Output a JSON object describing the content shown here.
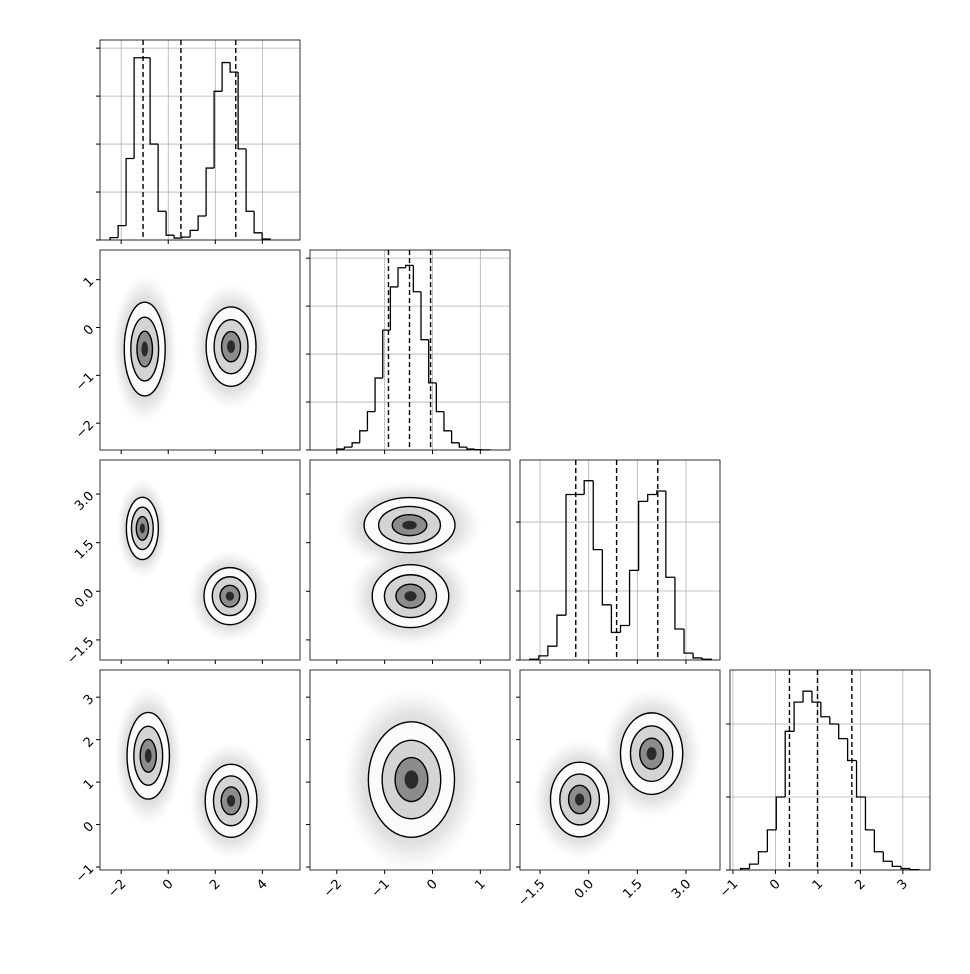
{
  "chart_data": {
    "type": "corner",
    "grid": true,
    "color": "#000000",
    "params": [
      {
        "lim": [
          -2.9,
          5.6
        ],
        "ticks": [
          {
            "value": -2,
            "label": "−2"
          },
          0,
          2,
          4
        ],
        "quantiles": [
          -1.07,
          0.54,
          2.87
        ],
        "hist": {
          "bins": [
            -2.47,
            -2.13,
            -1.79,
            -1.45,
            -1.11,
            -0.77,
            -0.43,
            -0.09,
            0.25,
            0.59,
            0.93,
            1.27,
            1.61,
            1.95,
            2.29,
            2.63,
            2.97,
            3.31,
            3.65,
            3.99,
            4.33
          ],
          "counts": [
            50,
            300,
            1700,
            3800,
            3800,
            2000,
            600,
            100,
            40,
            60,
            200,
            500,
            1500,
            3100,
            3700,
            3500,
            1900,
            600,
            150,
            20
          ],
          "ylim": [
            0,
            4170
          ],
          "yticks": [
            0,
            1000,
            2000,
            3000,
            4000
          ]
        }
      },
      {
        "lim": [
          -2.56,
          1.62
        ],
        "ticks": [
          {
            "value": -2,
            "label": "−2"
          },
          {
            "value": -1,
            "label": "−1"
          },
          0,
          1
        ],
        "quantiles": [
          -0.92,
          -0.48,
          -0.04
        ],
        "hist": {
          "bins": [
            -2.0,
            -1.84,
            -1.68,
            -1.52,
            -1.36,
            -1.2,
            -1.04,
            -0.88,
            -0.72,
            -0.56,
            -0.4,
            -0.24,
            -0.08,
            0.08,
            0.24,
            0.4,
            0.56,
            0.72,
            0.88,
            1.04,
            1.2
          ],
          "counts": [
            20,
            60,
            150,
            400,
            800,
            1500,
            2500,
            3400,
            3800,
            3850,
            3300,
            2300,
            1400,
            800,
            400,
            150,
            60,
            20,
            8,
            2
          ],
          "ylim": [
            0,
            4170
          ],
          "yticks": [
            0,
            1000,
            2000,
            3000,
            4000
          ]
        }
      },
      {
        "lim": [
          -2.12,
          4.05
        ],
        "ticks": [
          {
            "value": -1.5,
            "label": "−1.5"
          },
          {
            "value": 0,
            "label": "0.0"
          },
          1.5,
          {
            "value": 3,
            "label": "3.0"
          }
        ],
        "quantiles": [
          -0.4,
          0.86,
          2.13
        ],
        "hist": {
          "bins": [
            -1.82,
            -1.54,
            -1.26,
            -0.98,
            -0.7,
            -0.42,
            -0.14,
            0.14,
            0.42,
            0.7,
            0.98,
            1.26,
            1.54,
            1.82,
            2.1,
            2.38,
            2.66,
            2.94,
            3.22,
            3.5,
            3.78
          ],
          "counts": [
            10,
            60,
            200,
            650,
            2400,
            2400,
            2600,
            1600,
            800,
            400,
            500,
            1300,
            2300,
            2400,
            2450,
            1200,
            450,
            100,
            30,
            10
          ],
          "ylim": [
            0,
            2900
          ],
          "yticks": [
            0,
            1000,
            2000
          ]
        }
      },
      {
        "lim": [
          -1.07,
          3.64
        ],
        "ticks": [
          {
            "value": -1,
            "label": "−1"
          },
          0,
          1,
          2,
          3
        ],
        "quantiles": [
          0.33,
          0.99,
          1.8
        ],
        "hist": {
          "bins": [
            -0.82,
            -0.61,
            -0.4,
            -0.19,
            0.02,
            0.23,
            0.44,
            0.65,
            0.86,
            1.07,
            1.28,
            1.49,
            1.7,
            1.91,
            2.12,
            2.33,
            2.54,
            2.75,
            2.96,
            3.17,
            3.38
          ],
          "counts": [
            20,
            80,
            250,
            550,
            1000,
            1900,
            2300,
            2450,
            2300,
            2100,
            2000,
            1800,
            1500,
            1000,
            550,
            250,
            120,
            50,
            20,
            5
          ],
          "ylim": [
            0,
            2740
          ],
          "yticks": [
            0,
            1000,
            2000
          ]
        }
      }
    ],
    "panels": [
      {
        "x": 0,
        "y": 1,
        "blobs": [
          {
            "x": -1.0,
            "y": -0.45,
            "rx": 0.87,
            "ry": 0.98
          },
          {
            "x": 2.67,
            "y": -0.4,
            "rx": 1.06,
            "ry": 0.83
          }
        ]
      },
      {
        "x": 0,
        "y": 2,
        "blobs": [
          {
            "x": -1.1,
            "y": 1.94,
            "rx": 0.68,
            "ry": 0.96
          },
          {
            "x": 2.62,
            "y": -0.15,
            "rx": 1.1,
            "ry": 0.88
          }
        ]
      },
      {
        "x": 1,
        "y": 2,
        "blobs": [
          {
            "x": -0.48,
            "y": 2.04,
            "rx": 0.95,
            "ry": 0.85
          },
          {
            "x": -0.46,
            "y": -0.15,
            "rx": 0.8,
            "ry": 0.97
          }
        ]
      },
      {
        "x": 0,
        "y": 3,
        "blobs": [
          {
            "x": -0.85,
            "y": 1.62,
            "rx": 0.9,
            "ry": 1.02
          },
          {
            "x": 2.67,
            "y": 0.56,
            "rx": 1.1,
            "ry": 0.86
          }
        ]
      },
      {
        "x": 1,
        "y": 3,
        "blobs": [
          {
            "x": -0.44,
            "y": 1.06,
            "rx": 0.9,
            "ry": 1.36
          }
        ]
      },
      {
        "x": 2,
        "y": 3,
        "blobs": [
          {
            "x": -0.28,
            "y": 0.59,
            "rx": 0.9,
            "ry": 0.88
          },
          {
            "x": 1.94,
            "y": 1.67,
            "rx": 0.96,
            "ry": 0.96
          }
        ]
      }
    ]
  }
}
